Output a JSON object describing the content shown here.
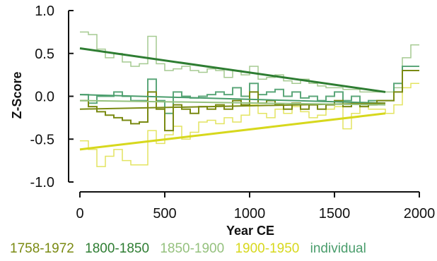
{
  "chart_data": {
    "type": "line",
    "title": "",
    "xlabel": "Year CE",
    "ylabel": "Z-Score",
    "xlim": [
      0,
      2000
    ],
    "ylim": [
      -1.0,
      1.0
    ],
    "xticks": [
      "0",
      "500",
      "1000",
      "1500",
      "2000"
    ],
    "xtick_values": [
      0,
      500,
      1000,
      1500,
      2000
    ],
    "yticks": [
      "1.0",
      "0.5",
      "0.0",
      "-0.5",
      "-1.0"
    ],
    "ytick_values": [
      1.0,
      0.5,
      0.0,
      -0.5,
      -1.0
    ],
    "grid": false,
    "legend_position": "bottom",
    "legend": [
      {
        "label": "1758-1972",
        "color": "#7a8a12"
      },
      {
        "label": "1800-1850",
        "color": "#2e7d32"
      },
      {
        "label": "1850-1900",
        "color": "#95c17e"
      },
      {
        "label": "1900-1950",
        "color": "#d7d81d"
      },
      {
        "label": "individual",
        "color": "#4a9d6c"
      }
    ],
    "series": [
      {
        "color": "#95c17e",
        "opacity": 0.85,
        "width": 1.5,
        "step": true,
        "x": [
          0,
          50,
          100,
          150,
          200,
          250,
          300,
          350,
          400,
          450,
          500,
          550,
          600,
          650,
          700,
          750,
          800,
          850,
          900,
          950,
          1000,
          1050,
          1100,
          1150,
          1200,
          1250,
          1300,
          1350,
          1400,
          1450,
          1500,
          1550,
          1600,
          1650,
          1700,
          1750,
          1800,
          1850,
          1900,
          1950,
          2000
        ],
        "y": [
          0.75,
          0.72,
          0.55,
          0.45,
          0.5,
          0.4,
          0.35,
          0.38,
          0.7,
          0.38,
          0.3,
          0.32,
          0.35,
          0.3,
          0.28,
          0.32,
          0.3,
          0.22,
          0.3,
          0.25,
          0.35,
          0.2,
          0.22,
          0.25,
          0.18,
          0.15,
          0.2,
          0.15,
          0.12,
          0.1,
          0.1,
          0.08,
          0.08,
          0.05,
          0.05,
          0.05,
          0.05,
          0.1,
          0.45,
          0.6,
          0.6
        ]
      },
      {
        "color": "#d7d81d",
        "opacity": 0.7,
        "width": 1.5,
        "step": true,
        "x": [
          0,
          50,
          100,
          150,
          200,
          250,
          300,
          350,
          400,
          450,
          500,
          550,
          600,
          650,
          700,
          750,
          800,
          850,
          900,
          950,
          1000,
          1050,
          1100,
          1150,
          1200,
          1250,
          1300,
          1350,
          1400,
          1450,
          1500,
          1550,
          1600,
          1650,
          1700,
          1750,
          1800,
          1850,
          1900,
          1950,
          2000
        ],
        "y": [
          -0.52,
          -0.62,
          -0.82,
          -0.7,
          -0.62,
          -0.75,
          -0.8,
          -0.8,
          -0.4,
          -0.55,
          -0.45,
          -0.35,
          -0.5,
          -0.42,
          -0.3,
          -0.28,
          -0.32,
          -0.25,
          -0.3,
          -0.22,
          -0.1,
          -0.2,
          -0.25,
          -0.15,
          -0.2,
          -0.12,
          -0.18,
          -0.25,
          -0.22,
          -0.15,
          -0.12,
          -0.38,
          -0.2,
          -0.1,
          -0.15,
          -0.15,
          -0.2,
          -0.1,
          0.1,
          0.15,
          0.15
        ]
      },
      {
        "color": "#4a9d6c",
        "opacity": 0.9,
        "width": 2,
        "step": true,
        "x": [
          0,
          50,
          100,
          150,
          200,
          250,
          300,
          350,
          400,
          450,
          500,
          550,
          600,
          650,
          700,
          750,
          800,
          850,
          900,
          950,
          1000,
          1050,
          1100,
          1150,
          1200,
          1250,
          1300,
          1350,
          1400,
          1450,
          1500,
          1550,
          1600,
          1650,
          1700,
          1750,
          1800,
          1850,
          1900,
          1950,
          2000
        ],
        "y": [
          0.02,
          -0.08,
          0.0,
          0.0,
          0.05,
          0.0,
          -0.05,
          -0.05,
          0.2,
          -0.05,
          -0.2,
          0.05,
          0.0,
          -0.02,
          0.0,
          0.02,
          0.05,
          0.02,
          0.1,
          0.0,
          0.15,
          0.02,
          0.05,
          0.08,
          0.0,
          0.05,
          -0.02,
          0.0,
          -0.05,
          0.0,
          0.05,
          -0.05,
          0.0,
          -0.08,
          -0.05,
          -0.05,
          -0.05,
          0.15,
          0.35,
          0.35,
          0.35
        ]
      },
      {
        "color": "#7a8a12",
        "opacity": 1.0,
        "width": 2,
        "step": true,
        "x": [
          0,
          50,
          100,
          150,
          200,
          250,
          300,
          350,
          400,
          450,
          500,
          550,
          600,
          650,
          700,
          750,
          800,
          850,
          900,
          950,
          1000,
          1050,
          1100,
          1150,
          1200,
          1250,
          1300,
          1350,
          1400,
          1450,
          1500,
          1550,
          1600,
          1650,
          1700,
          1750,
          1800,
          1850,
          1900,
          1950,
          2000
        ],
        "y": [
          -0.05,
          -0.12,
          -0.18,
          -0.22,
          -0.25,
          -0.28,
          -0.32,
          -0.3,
          0.05,
          -0.15,
          -0.4,
          -0.1,
          -0.15,
          -0.2,
          -0.12,
          -0.15,
          -0.1,
          -0.15,
          -0.05,
          -0.1,
          0.05,
          -0.08,
          -0.05,
          -0.1,
          -0.15,
          -0.08,
          -0.15,
          -0.1,
          -0.15,
          -0.1,
          -0.05,
          -0.12,
          -0.08,
          -0.12,
          -0.1,
          -0.05,
          -0.05,
          0.05,
          0.3,
          0.3,
          0.3
        ]
      },
      {
        "color": "#4a9d6c",
        "opacity": 1.0,
        "width": 2,
        "step": false,
        "x": [
          0,
          1800
        ],
        "y": [
          0.02,
          -0.08
        ]
      },
      {
        "color": "#7a8a12",
        "opacity": 1.0,
        "width": 2,
        "step": false,
        "x": [
          0,
          1800
        ],
        "y": [
          -0.15,
          -0.08
        ]
      },
      {
        "color": "#95c17e",
        "opacity": 1.0,
        "width": 2,
        "step": false,
        "x": [
          0,
          1800
        ],
        "y": [
          -0.05,
          -0.1
        ]
      },
      {
        "color": "#2e7d32",
        "opacity": 1.0,
        "width": 3,
        "step": false,
        "x": [
          0,
          1800
        ],
        "y": [
          0.56,
          0.05
        ]
      },
      {
        "color": "#d7d81d",
        "opacity": 1.0,
        "width": 3,
        "step": false,
        "x": [
          0,
          1800
        ],
        "y": [
          -0.62,
          -0.2
        ]
      }
    ]
  }
}
